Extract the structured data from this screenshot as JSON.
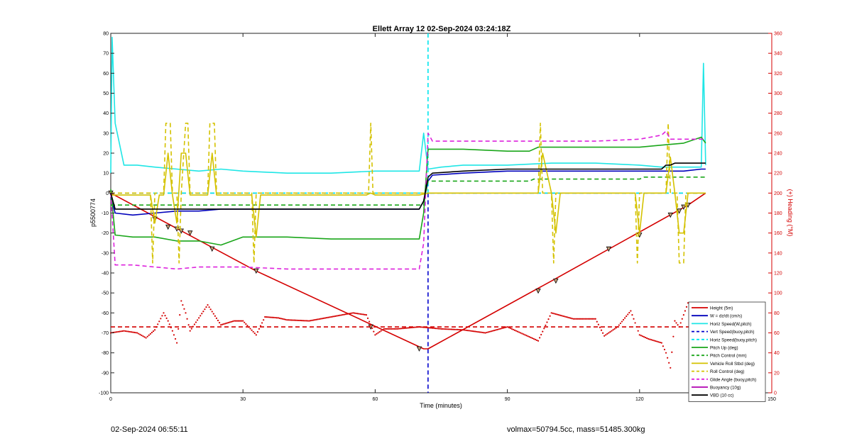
{
  "chart_data": {
    "type": "line",
    "title": "Ellett Array 12 02-Sep-2024 03:24:18Z",
    "xlabel": "Time (minutes)",
    "ylabel": "p5500774",
    "y2label": "(+) Heading (°M)",
    "xlim": [
      0,
      150
    ],
    "ylim": [
      -100,
      80
    ],
    "y2lim": [
      0,
      360
    ],
    "xticks": [
      0,
      30,
      60,
      90,
      120,
      150
    ],
    "yticks": [
      80,
      70,
      60,
      50,
      40,
      30,
      20,
      10,
      0,
      -10,
      -20,
      -30,
      -40,
      -50,
      -60,
      -70,
      -80,
      -90,
      -100
    ],
    "y2ticks": [
      360,
      340,
      320,
      300,
      280,
      260,
      240,
      220,
      200,
      180,
      160,
      140,
      120,
      100,
      80,
      60,
      40,
      20,
      0
    ],
    "grid": false,
    "legend_position": "bottom-right",
    "vertical_lines": [
      {
        "x": 72,
        "color": "#00e5ee",
        "style": "dashed",
        "y_from": 80,
        "y_to": 0
      },
      {
        "x": 72,
        "color": "#0000cc",
        "style": "dashed",
        "y_from": 0,
        "y_to": -100
      }
    ],
    "series": [
      {
        "name": "Height (5m)",
        "color": "#d40000",
        "style": "solid",
        "axis": "left",
        "x": [
          0,
          33,
          71,
          72,
          100,
          131,
          135
        ],
        "y": [
          0,
          -39,
          -78,
          -78,
          -44,
          -6,
          0
        ],
        "markers": [
          [
            0,
            0
          ],
          [
            10,
            -13
          ],
          [
            13,
            -17
          ],
          [
            15,
            -18
          ],
          [
            16,
            -19
          ],
          [
            18,
            -20
          ],
          [
            23,
            -28
          ],
          [
            33,
            -39
          ],
          [
            59,
            -67
          ],
          [
            70,
            -78
          ],
          [
            97,
            -49
          ],
          [
            101,
            -44
          ],
          [
            113,
            -28
          ],
          [
            120,
            -21
          ],
          [
            127,
            -11
          ],
          [
            129,
            -9
          ],
          [
            130,
            -7
          ],
          [
            131,
            -6
          ]
        ]
      },
      {
        "name": "W = dz/dt (cm/s)",
        "color": "#0000bb",
        "style": "solid",
        "axis": "left",
        "x": [
          0,
          1,
          5,
          10,
          15,
          20,
          25,
          30,
          40,
          50,
          60,
          70,
          71,
          72,
          73,
          80,
          90,
          100,
          110,
          120,
          125,
          130,
          134,
          135
        ],
        "y": [
          -2,
          -10,
          -11,
          -10,
          -9,
          -9,
          -8,
          -8,
          -8,
          -8,
          -8,
          -8,
          -4,
          6,
          9,
          10,
          11,
          11,
          11,
          11,
          11,
          11,
          12,
          12
        ]
      },
      {
        "name": "Horiz Speed(W,pitch)",
        "color": "#1fe6e6",
        "style": "solid",
        "axis": "left",
        "x": [
          0,
          0.3,
          1,
          3,
          6,
          10,
          15,
          20,
          25,
          30,
          40,
          50,
          60,
          70,
          71,
          72,
          75,
          80,
          90,
          100,
          110,
          120,
          125,
          130,
          134,
          134.5,
          135
        ],
        "y": [
          10,
          78,
          35,
          14,
          14,
          13,
          12,
          11,
          12,
          11,
          10,
          10,
          11,
          11,
          30,
          12,
          13,
          14,
          14,
          15,
          15,
          14,
          13,
          13,
          13,
          65,
          14
        ]
      },
      {
        "name": "Vert Speed(buoy,pitch)",
        "color": "#0000cc",
        "style": "dashed",
        "axis": "left",
        "x": [
          0,
          135
        ],
        "y": [
          0,
          0
        ]
      },
      {
        "name": "Horiz Speed(buoy,pitch)",
        "color": "#00e5ee",
        "style": "dashed",
        "axis": "left",
        "x": [
          0,
          135
        ],
        "y": [
          0,
          0
        ]
      },
      {
        "name": "Pitch Up (deg)",
        "color": "#1aa61a",
        "style": "solid",
        "axis": "left",
        "x": [
          0,
          1,
          5,
          10,
          15,
          20,
          25,
          30,
          40,
          50,
          60,
          70,
          71,
          72,
          75,
          80,
          90,
          95,
          97,
          100,
          110,
          120,
          125,
          130,
          134,
          135
        ],
        "y": [
          2,
          -21,
          -22,
          -22,
          -24,
          -24,
          -26,
          -22,
          -22,
          -23,
          -23,
          -23,
          -10,
          22,
          22,
          22,
          21,
          21,
          23,
          23,
          23,
          23,
          24,
          25,
          28,
          25
        ]
      },
      {
        "name": "Pitch Control (mm)",
        "color": "#1aa61a",
        "style": "dashed",
        "axis": "left",
        "x": [
          0,
          71,
          72,
          95,
          96,
          120,
          121,
          135
        ],
        "y": [
          -6,
          -6,
          6,
          6,
          7,
          7,
          8,
          8
        ]
      },
      {
        "name": "Vehicle Roll Stbd (deg)",
        "color": "#d4c200",
        "style": "solid",
        "axis": "left",
        "x": [
          0,
          9,
          10,
          11,
          12,
          13,
          14,
          15,
          16,
          17,
          18,
          22,
          23,
          24,
          32,
          33,
          34,
          58,
          59,
          60,
          70,
          72,
          97,
          98,
          100,
          101,
          102,
          119,
          120,
          121,
          126,
          127,
          128,
          129,
          130,
          131,
          135
        ],
        "y": [
          -1,
          -1,
          -15,
          -1,
          -1,
          20,
          -1,
          -15,
          20,
          20,
          -1,
          -1,
          20,
          -1,
          -1,
          -22,
          -1,
          -1,
          0,
          -1,
          -1,
          0,
          0,
          20,
          0,
          -20,
          0,
          0,
          -20,
          0,
          0,
          18,
          0,
          -20,
          -20,
          0,
          0
        ]
      },
      {
        "name": "Roll Control (deg)",
        "color": "#d4c200",
        "style": "dashed",
        "axis": "left",
        "x": [
          0,
          9,
          9.5,
          10,
          12,
          12.5,
          13.5,
          14,
          15,
          15.5,
          16,
          17,
          17.5,
          18,
          22,
          22.5,
          23.5,
          24,
          32,
          32.5,
          33,
          58.5,
          59,
          59.5,
          72,
          97,
          97.5,
          98,
          100,
          100.5,
          101,
          119,
          119.5,
          120,
          126,
          126.5,
          127,
          128.5,
          129,
          130,
          130.5,
          135
        ],
        "y": [
          0,
          0,
          -35,
          0,
          0,
          35,
          35,
          0,
          0,
          -35,
          0,
          35,
          35,
          0,
          0,
          35,
          35,
          0,
          0,
          -35,
          0,
          0,
          35,
          0,
          0,
          0,
          35,
          0,
          0,
          -35,
          0,
          0,
          -35,
          0,
          0,
          35,
          0,
          0,
          -35,
          -35,
          0,
          0
        ]
      },
      {
        "name": "Glide Angle (buoy,pitch)",
        "color": "#dd22dd",
        "style": "dashed",
        "axis": "left",
        "x": [
          0,
          1,
          5,
          10,
          15,
          20,
          30,
          40,
          50,
          60,
          70,
          71,
          72,
          73,
          80,
          90,
          100,
          110,
          120,
          125,
          126,
          127,
          130,
          135
        ],
        "y": [
          0,
          -36,
          -36,
          -37,
          -38,
          -37,
          -37,
          -38,
          -38,
          -38,
          -38,
          -25,
          30,
          26,
          26,
          26,
          26,
          26,
          27,
          29,
          31,
          27,
          27,
          27
        ]
      },
      {
        "name": "Buoyancy (10g)",
        "color": "#b000b0",
        "style": "solid",
        "axis": "left",
        "x": [],
        "y": []
      },
      {
        "name": "VBD (10 cc)",
        "color": "#000000",
        "style": "solid",
        "axis": "left",
        "x": [
          0,
          1,
          30,
          60,
          70,
          71,
          72,
          73,
          80,
          90,
          100,
          110,
          125,
          126,
          127,
          128,
          135
        ],
        "y": [
          0,
          -8,
          -8,
          -8,
          -8,
          -4,
          8,
          10,
          11,
          12,
          12,
          12,
          12,
          14,
          14,
          15,
          15
        ]
      },
      {
        "name": "(+) Heading",
        "color": "#d40000",
        "style": "dots",
        "axis": "right",
        "legend": false,
        "x": [
          0,
          3,
          6,
          8,
          10,
          12,
          13,
          14,
          15,
          16,
          17,
          18,
          20,
          22,
          25,
          28,
          30,
          33,
          35,
          38,
          40,
          45,
          50,
          55,
          58,
          60,
          62,
          65,
          70,
          75,
          80,
          85,
          90,
          95,
          97,
          100,
          105,
          110,
          112,
          115,
          118,
          120,
          122,
          125,
          126,
          127,
          128,
          129,
          130,
          131,
          133,
          135
        ],
        "y": [
          60,
          62,
          60,
          55,
          63,
          80,
          72,
          62,
          50,
          92,
          80,
          62,
          75,
          88,
          68,
          72,
          72,
          58,
          76,
          75,
          73,
          72,
          76,
          80,
          78,
          58,
          64,
          64,
          66,
          64,
          63,
          60,
          66,
          56,
          52,
          80,
          74,
          74,
          57,
          66,
          82,
          58,
          54,
          50,
          40,
          25,
          72,
          66,
          78,
          90,
          76,
          70
        ]
      },
      {
        "name": "Heading mean",
        "color": "#d40000",
        "style": "dashed",
        "axis": "right",
        "legend": false,
        "x": [
          0,
          135
        ],
        "y": [
          66,
          66
        ]
      }
    ]
  },
  "footer": {
    "left": "02-Sep-2024 06:55:11",
    "right": "volmax=50794.5cc, mass=51485.300kg"
  }
}
